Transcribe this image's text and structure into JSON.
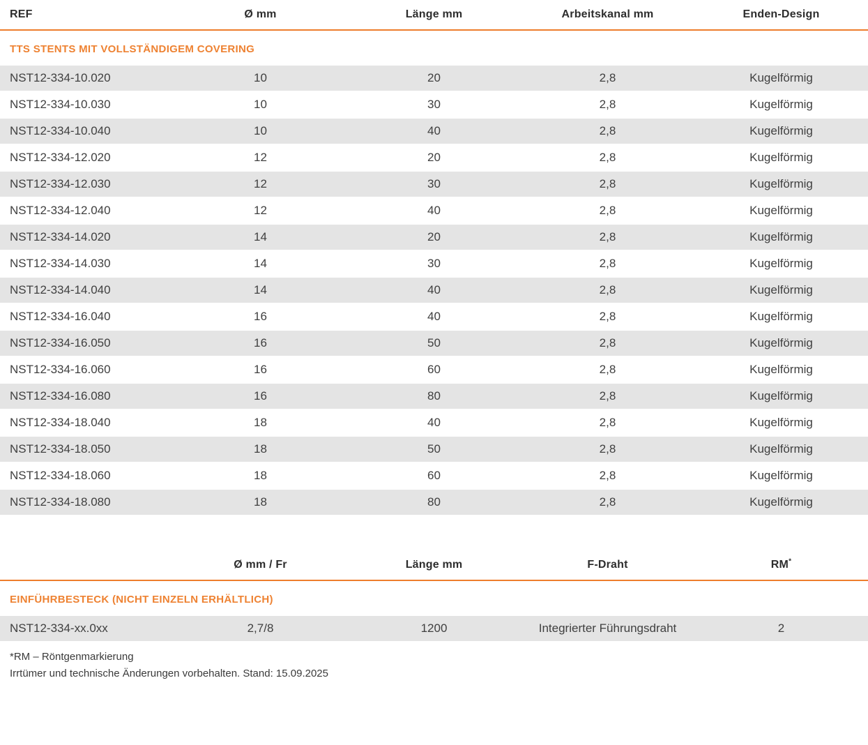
{
  "accent_color": "#ee7d2c",
  "row_stripe_color": "#e4e4e4",
  "table1": {
    "headers": [
      "REF",
      "Ø mm",
      "Länge mm",
      "Arbeitskanal mm",
      "Enden-Design"
    ],
    "section_title": "TTS STENTS MIT VOLLSTÄNDIGEM COVERING",
    "rows": [
      [
        "NST12-334-10.020",
        "10",
        "20",
        "2,8",
        "Kugelförmig"
      ],
      [
        "NST12-334-10.030",
        "10",
        "30",
        "2,8",
        "Kugelförmig"
      ],
      [
        "NST12-334-10.040",
        "10",
        "40",
        "2,8",
        "Kugelförmig"
      ],
      [
        "NST12-334-12.020",
        "12",
        "20",
        "2,8",
        "Kugelförmig"
      ],
      [
        "NST12-334-12.030",
        "12",
        "30",
        "2,8",
        "Kugelförmig"
      ],
      [
        "NST12-334-12.040",
        "12",
        "40",
        "2,8",
        "Kugelförmig"
      ],
      [
        "NST12-334-14.020",
        "14",
        "20",
        "2,8",
        "Kugelförmig"
      ],
      [
        "NST12-334-14.030",
        "14",
        "30",
        "2,8",
        "Kugelförmig"
      ],
      [
        "NST12-334-14.040",
        "14",
        "40",
        "2,8",
        "Kugelförmig"
      ],
      [
        "NST12-334-16.040",
        "16",
        "40",
        "2,8",
        "Kugelförmig"
      ],
      [
        "NST12-334-16.050",
        "16",
        "50",
        "2,8",
        "Kugelförmig"
      ],
      [
        "NST12-334-16.060",
        "16",
        "60",
        "2,8",
        "Kugelförmig"
      ],
      [
        "NST12-334-16.080",
        "16",
        "80",
        "2,8",
        "Kugelförmig"
      ],
      [
        "NST12-334-18.040",
        "18",
        "40",
        "2,8",
        "Kugelförmig"
      ],
      [
        "NST12-334-18.050",
        "18",
        "50",
        "2,8",
        "Kugelförmig"
      ],
      [
        "NST12-334-18.060",
        "18",
        "60",
        "2,8",
        "Kugelförmig"
      ],
      [
        "NST12-334-18.080",
        "18",
        "80",
        "2,8",
        "Kugelförmig"
      ]
    ]
  },
  "table2": {
    "headers": [
      "",
      "Ø mm / Fr",
      "Länge mm",
      "F-Draht",
      "RM"
    ],
    "rm_sup": "*",
    "section_title": "EINFÜHRBESTECK (NICHT EINZELN ERHÄLTLICH)",
    "rows": [
      [
        "NST12-334-xx.0xx",
        "2,7/8",
        "1200",
        "Integrierter Führungsdraht",
        "2"
      ]
    ]
  },
  "footnotes": {
    "line1": "*RM – Röntgenmarkierung",
    "line2": "Irrtümer und technische Änderungen vorbehalten. Stand: 15.09.2025"
  }
}
